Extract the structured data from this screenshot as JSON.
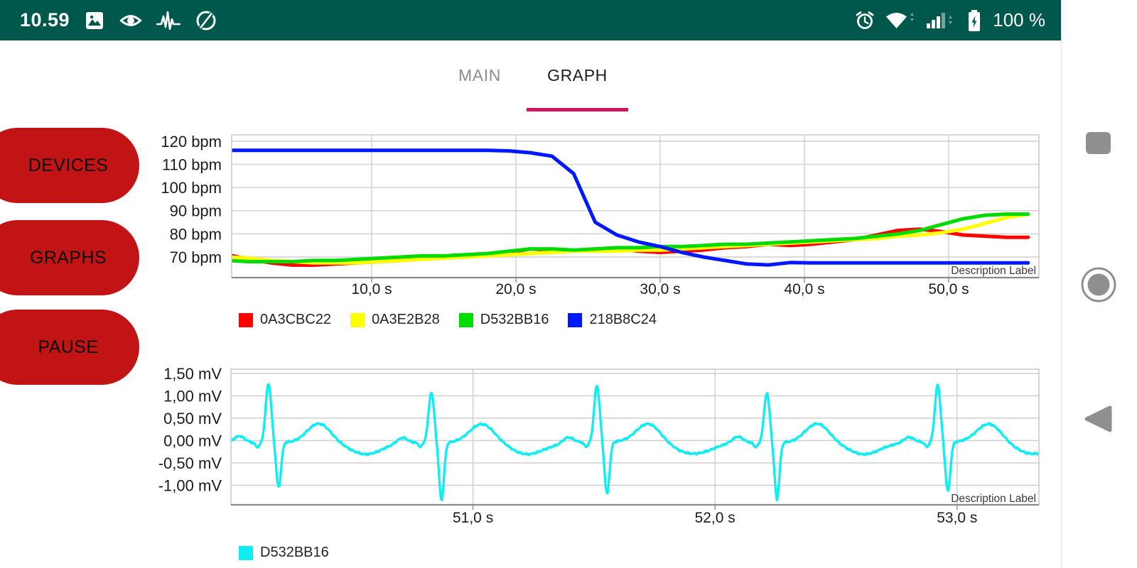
{
  "status_bar": {
    "bg_color": "#00584C",
    "time": "10.59",
    "battery_percent": "100 %",
    "left_icons": [
      "image-notification",
      "eye-notification",
      "ecg-notification",
      "data-saver"
    ],
    "right_icons": [
      "alarm",
      "wifi",
      "cell-signal",
      "battery-charging"
    ]
  },
  "nav_bar": {
    "icon_color": "#8F8F8F",
    "buttons": [
      "recents",
      "home",
      "back"
    ]
  },
  "tabs": {
    "items": [
      {
        "label": "MAIN",
        "active": false
      },
      {
        "label": "GRAPH",
        "active": true
      }
    ],
    "indicator_color": "#D6145C"
  },
  "action_buttons": {
    "color": "#C21414",
    "items": [
      {
        "label": "DEVICES"
      },
      {
        "label": "GRAPHS"
      },
      {
        "label": "PAUSE"
      }
    ]
  },
  "chart_data": [
    {
      "type": "line",
      "id": "heart-rate",
      "description": "Description Label",
      "x_unit": "s",
      "y_unit": "bpm",
      "x_range": [
        0,
        56.3
      ],
      "y_range": [
        61,
        122.5
      ],
      "grid": true,
      "x_ticks": [
        {
          "v": 10,
          "label": "10,0 s"
        },
        {
          "v": 20,
          "label": "20,0 s"
        },
        {
          "v": 30,
          "label": "30,0 s"
        },
        {
          "v": 40,
          "label": "40,0 s"
        },
        {
          "v": 50,
          "label": "50,0 s"
        }
      ],
      "y_ticks": [
        {
          "v": 120,
          "label": "120 bpm"
        },
        {
          "v": 110,
          "label": "110 bpm"
        },
        {
          "v": 100,
          "label": "100 bpm"
        },
        {
          "v": 90,
          "label": "90 bpm"
        },
        {
          "v": 80,
          "label": "80 bpm"
        },
        {
          "v": 70,
          "label": "70 bpm"
        }
      ],
      "x_start": 0,
      "x_step": 1.5,
      "series": [
        {
          "name": "0A3CBC22",
          "color": "#ff0000",
          "values": [
            71,
            69,
            67.5,
            66.5,
            66.5,
            67,
            67.5,
            68,
            68.5,
            69.5,
            70,
            70.5,
            71,
            72,
            73.5,
            73,
            72.5,
            73,
            73.5,
            72.5,
            72,
            72.5,
            73,
            74,
            74.5,
            75.5,
            75,
            75.5,
            76.5,
            77.5,
            79.5,
            81.5,
            82,
            81,
            79.5,
            79,
            78.5,
            78.5
          ]
        },
        {
          "name": "0A3E2B28",
          "color": "#ffff00",
          "values": [
            70,
            69.5,
            68.5,
            68,
            67.5,
            67.5,
            67.5,
            68,
            68.5,
            69,
            69.5,
            70,
            70.5,
            71,
            71.5,
            72,
            72.5,
            72.5,
            72.5,
            73,
            73,
            73.5,
            74,
            74.5,
            75,
            75.5,
            76,
            76.5,
            77,
            77.5,
            78,
            79,
            79.5,
            80.5,
            82,
            84.5,
            87,
            88.5
          ]
        },
        {
          "name": "D532BB16",
          "color": "#00dc00",
          "values": [
            68.5,
            68,
            68,
            68,
            68.5,
            68.5,
            69,
            69.5,
            70,
            70.5,
            70.5,
            71,
            71.5,
            72.5,
            73.5,
            73.5,
            73,
            73.5,
            74,
            74,
            74.5,
            74.5,
            75,
            75.5,
            75.5,
            76,
            76.5,
            77,
            77.5,
            78,
            79,
            80,
            81.5,
            84,
            86.5,
            88,
            88.5,
            88.5
          ]
        },
        {
          "name": "218B8C24",
          "color": "#0018ff",
          "values": [
            116,
            116,
            116,
            116,
            116,
            116,
            116,
            116,
            116,
            116,
            116,
            116,
            116,
            115.8,
            115,
            113.5,
            106,
            85,
            79.5,
            76.5,
            74.5,
            72,
            70,
            68.5,
            67,
            66.6,
            67.6,
            67.5,
            67.5,
            67.5,
            67.5,
            67.5,
            67.5,
            67.5,
            67.5,
            67.5,
            67.5,
            67.5
          ]
        }
      ]
    },
    {
      "type": "line",
      "id": "ecg",
      "description": "Description Label",
      "x_unit": "s",
      "y_unit": "mV",
      "x_range": [
        50,
        53.34
      ],
      "y_range": [
        -1.44,
        1.6
      ],
      "grid": true,
      "x_ticks": [
        {
          "v": 51,
          "label": "51,0 s"
        },
        {
          "v": 52,
          "label": "52,0 s"
        },
        {
          "v": 53,
          "label": "53,0 s"
        }
      ],
      "y_ticks": [
        {
          "v": 1.5,
          "label": "1,50 mV"
        },
        {
          "v": 1,
          "label": "1,00 mV"
        },
        {
          "v": 0.5,
          "label": "0,50 mV"
        },
        {
          "v": 0,
          "label": "0,00 mV"
        },
        {
          "v": -0.5,
          "label": "-0,50 mV"
        },
        {
          "v": -1,
          "label": "-1,00 mV"
        }
      ],
      "series": [
        {
          "name": "D532BB16",
          "color": "#0ceef2",
          "ecg": {
            "x_range": [
              50,
              53.34
            ],
            "sample_step": 0.004,
            "baseline": -0.04,
            "p_amp": 0.13,
            "p_offset": -0.12,
            "p_width": 0.03,
            "q_amp": -0.1,
            "q_offset": -0.045,
            "q_width": 0.012,
            "r_width": 0.016,
            "s_offset": 0.042,
            "s_width": 0.014,
            "t_amp": 0.42,
            "t_offset": 0.21,
            "t_width": 0.07,
            "u_amp": -0.26,
            "u_offset": 0.4,
            "u_width": 0.1,
            "beats": [
              {
                "t": 50.155,
                "r": 1.32,
                "s": -1.02
              },
              {
                "t": 50.828,
                "r": 1.12,
                "s": -1.3
              },
              {
                "t": 51.512,
                "r": 1.28,
                "s": -1.16
              },
              {
                "t": 52.214,
                "r": 1.1,
                "s": -1.28
              },
              {
                "t": 52.92,
                "r": 1.3,
                "s": -1.1
              }
            ]
          }
        }
      ]
    }
  ]
}
